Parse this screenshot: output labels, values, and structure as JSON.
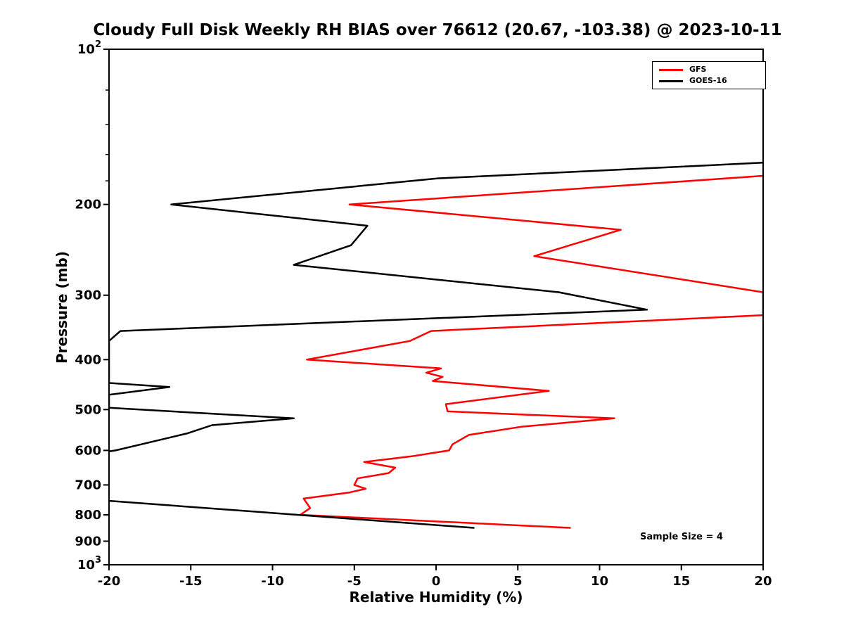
{
  "chart_data": {
    "type": "line",
    "title": "Cloudy Full Disk Weekly RH BIAS over 76612 (20.67, -103.38) @ 2023-10-11",
    "xlabel": "Relative Humidity (%)",
    "ylabel": "Pressure (mb)",
    "xlim": [
      -20,
      20
    ],
    "ylim": [
      100,
      1000
    ],
    "y_scale": "log",
    "y_inverted": true,
    "grid": false,
    "x_ticks": [
      -20,
      -15,
      -10,
      -5,
      0,
      5,
      10,
      15,
      20
    ],
    "y_major_ticks": [
      {
        "value": 100,
        "label": "10",
        "exp": "2"
      },
      {
        "value": 200,
        "label": "200"
      },
      {
        "value": 300,
        "label": "300"
      },
      {
        "value": 400,
        "label": "400"
      },
      {
        "value": 500,
        "label": "500"
      },
      {
        "value": 600,
        "label": "600"
      },
      {
        "value": 700,
        "label": "700"
      },
      {
        "value": 800,
        "label": "800"
      },
      {
        "value": 900,
        "label": "900"
      },
      {
        "value": 1000,
        "label": "10",
        "exp": "3"
      }
    ],
    "y_minor_ticks": [
      120,
      140,
      160,
      180
    ],
    "legend": {
      "position": "upper right"
    },
    "annotation": "Sample Size = 4",
    "series": [
      {
        "name": "GFS",
        "color": "#ff0000",
        "points": [
          [
            176,
            20.0
          ],
          [
            200,
            -5.3
          ],
          [
            224,
            11.3
          ],
          [
            252,
            6.0
          ],
          [
            296,
            20.0
          ],
          [
            328,
            20.0
          ],
          [
            352,
            -0.3
          ],
          [
            368,
            -1.6
          ],
          [
            400,
            -7.9
          ],
          [
            416,
            0.3
          ],
          [
            424,
            -0.6
          ],
          [
            432,
            0.4
          ],
          [
            440,
            -0.2
          ],
          [
            460,
            6.9
          ],
          [
            488,
            0.6
          ],
          [
            504,
            0.7
          ],
          [
            520,
            10.9
          ],
          [
            540,
            5.2
          ],
          [
            560,
            2.0
          ],
          [
            584,
            1.0
          ],
          [
            600,
            0.8
          ],
          [
            616,
            -1.5
          ],
          [
            632,
            -4.4
          ],
          [
            648,
            -2.5
          ],
          [
            664,
            -2.9
          ],
          [
            680,
            -4.8
          ],
          [
            700,
            -5.0
          ],
          [
            712,
            -4.3
          ],
          [
            724,
            -5.3
          ],
          [
            744,
            -8.1
          ],
          [
            776,
            -7.7
          ],
          [
            800,
            -8.3
          ],
          [
            848,
            8.2
          ]
        ]
      },
      {
        "name": "GOES-16",
        "color": "#000000",
        "points": [
          [
            166,
            20.0
          ],
          [
            178,
            0.1
          ],
          [
            200,
            -16.2
          ],
          [
            220,
            -4.2
          ],
          [
            240,
            -5.2
          ],
          [
            262,
            -8.7
          ],
          [
            296,
            7.5
          ],
          [
            320,
            12.9
          ],
          [
            352,
            -19.3
          ],
          [
            368,
            -20.0
          ],
          [
            444,
            -20.0
          ],
          [
            452,
            -16.3
          ],
          [
            468,
            -20.0
          ],
          [
            496,
            -20.0
          ],
          [
            520,
            -8.7
          ],
          [
            536,
            -13.7
          ],
          [
            556,
            -15.2
          ],
          [
            600,
            -19.6
          ],
          [
            616,
            -22.0
          ],
          [
            736,
            -22.0
          ],
          [
            752,
            -19.9
          ],
          [
            848,
            2.3
          ]
        ]
      }
    ]
  }
}
